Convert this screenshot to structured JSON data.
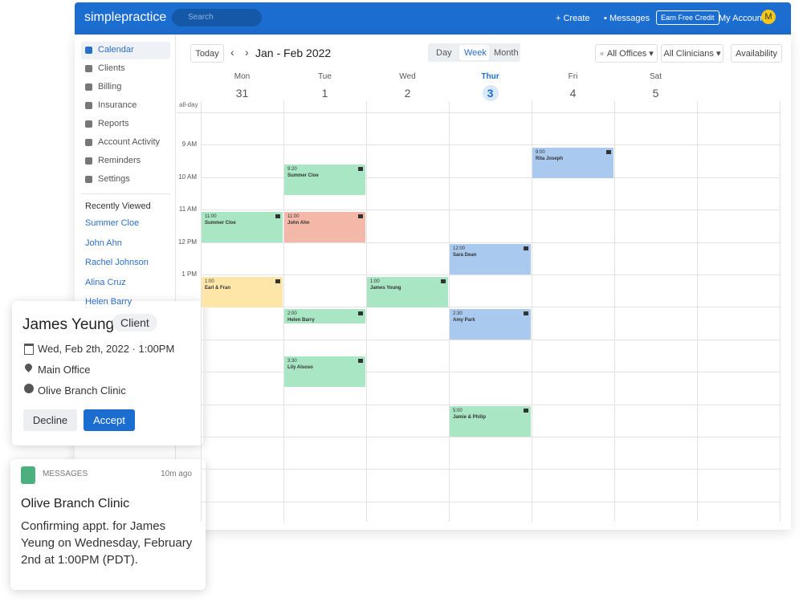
{
  "header": {
    "logo": "simplepractice",
    "search": "Search",
    "create": "Create",
    "messages": "Messages",
    "earn": "Earn Free Credit",
    "account": "My Account",
    "avatar": "M"
  },
  "sidebar": {
    "items": [
      "Calendar",
      "Clients",
      "Billing",
      "Insurance",
      "Reports",
      "Account Activity",
      "Reminders",
      "Settings"
    ],
    "recent_title": "Recently Viewed",
    "recent": [
      "Summer Cloe",
      "John Ahn",
      "Rachel Johnson",
      "Alina Cruz",
      "Helen Barry"
    ]
  },
  "toolbar": {
    "today": "Today",
    "range": "Jan - Feb 2022",
    "views": [
      "Day",
      "Week",
      "Month"
    ],
    "offices": "All Offices",
    "clinicians": "All Clinicians",
    "availability": "Availability"
  },
  "calendar": {
    "all_day": "all-day",
    "times": [
      "9 AM",
      "10 AM",
      "11 AM",
      "12 PM",
      "1 PM"
    ],
    "days": [
      {
        "name": "Mon",
        "date": "31",
        "events": [
          {
            "time": "11:00",
            "name": "Summer Cloe",
            "color": "#a8e6c4"
          },
          {
            "time": "1:00",
            "name": "Earl & Fran",
            "color": "#fde6a8"
          }
        ]
      },
      {
        "name": "Tue",
        "date": "1",
        "events": [
          {
            "time": "9:20",
            "name": "Summer Cloe",
            "color": "#a8e6c4"
          },
          {
            "time": "11:00",
            "name": "John Ahn",
            "color": "#f4b8a8"
          },
          {
            "time": "2:00",
            "name": "Helen Barry",
            "color": "#a8e6c4"
          },
          {
            "time": "3:30",
            "name": "Lily Alsoso",
            "color": "#a8e6c4"
          }
        ]
      },
      {
        "name": "Wed",
        "date": "2",
        "events": [
          {
            "time": "1:00",
            "name": "James Young",
            "color": "#a8e6c4"
          }
        ]
      },
      {
        "name": "Thur",
        "date": "3",
        "today": true,
        "events": [
          {
            "time": "12:00",
            "name": "Sara Dean",
            "color": "#a9c9ee"
          },
          {
            "time": "2:30",
            "name": "Amy Park",
            "color": "#a9c9ee"
          },
          {
            "time": "5:00",
            "name": "Jamie & Philip",
            "color": "#a8e6c4"
          }
        ]
      },
      {
        "name": "Fri",
        "date": "4",
        "events": [
          {
            "time": "9:00",
            "name": "Rita Joseph",
            "color": "#a9c9ee"
          }
        ]
      },
      {
        "name": "Sat",
        "date": "5",
        "events": []
      }
    ]
  },
  "request_card": {
    "name": "James Yeung",
    "badge": "Client",
    "datetime": "Wed, Feb 2th, 2022 · 1:00PM",
    "location": "Main Office",
    "clinic": "Olive Branch Clinic",
    "decline": "Decline",
    "accept": "Accept"
  },
  "message_card": {
    "label": "MESSAGES",
    "time": "10m ago",
    "title": "Olive Branch Clinic",
    "body": "Confirming appt. for James Yeung on Wednesday, February 2nd at 1:00PM (PDT)."
  }
}
